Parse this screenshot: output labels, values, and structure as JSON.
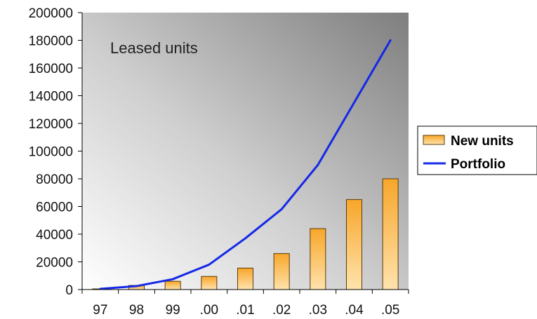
{
  "chart_data": {
    "type": "bar",
    "title": "Leased units",
    "categories": [
      "97",
      "98",
      "99",
      ".00",
      ".01",
      ".02",
      ".03",
      ".04",
      ".05"
    ],
    "series": [
      {
        "name": "New units",
        "type": "bar",
        "values": [
          500,
          3000,
          6000,
          9500,
          15500,
          26000,
          44000,
          65000,
          80000
        ]
      },
      {
        "name": "Portfolio",
        "type": "line",
        "values": [
          500,
          2500,
          7500,
          18000,
          37000,
          58000,
          90000,
          135000,
          180000
        ]
      }
    ],
    "xlabel": "",
    "ylabel": "",
    "ylim": [
      0,
      200000
    ],
    "yticks": [
      0,
      20000,
      40000,
      60000,
      80000,
      100000,
      120000,
      140000,
      160000,
      180000,
      200000
    ],
    "legend": "right",
    "grid": false,
    "colors": {
      "bar_top": "#f7a62a",
      "bar_bottom": "#ffe3ad",
      "bar_stroke": "#5a3a0a",
      "line": "#1428e8",
      "plot_light": "#ffffff",
      "plot_dark": "#7e7e7e"
    }
  }
}
